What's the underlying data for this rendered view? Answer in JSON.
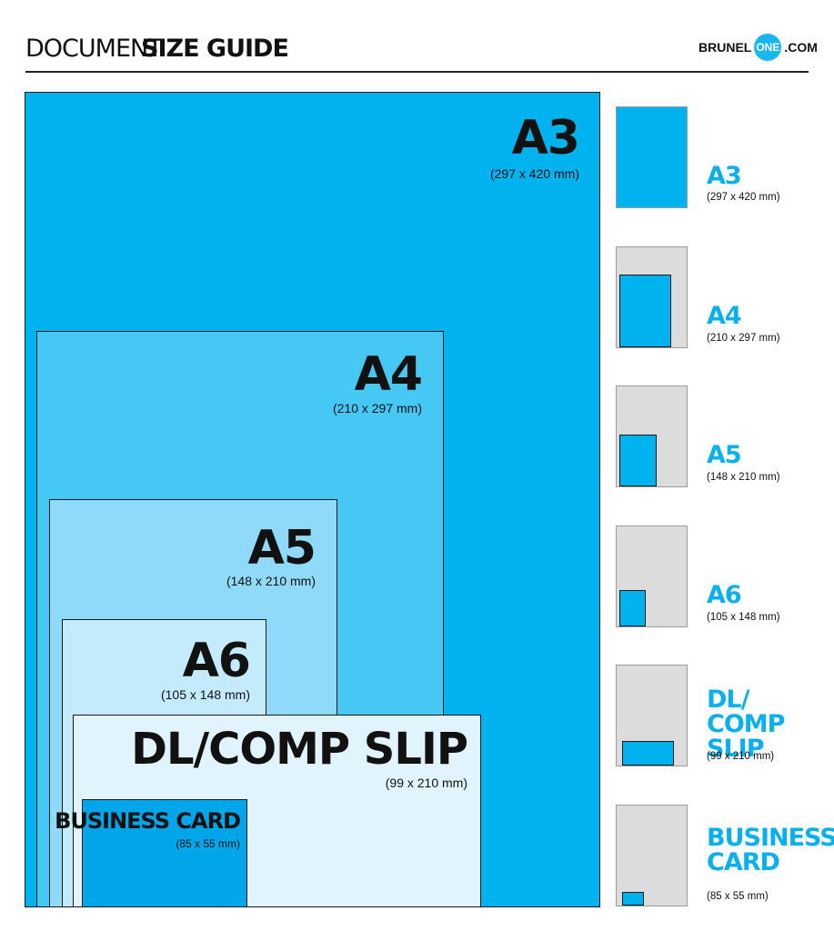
{
  "header": {
    "title_light": "DOCUMENT",
    "title_bold": "SIZE GUIDE",
    "logo_pre": "BRUNEL",
    "logo_circle": "ONE",
    "logo_post": ".COM"
  },
  "colors": {
    "a3": "#00b2ee",
    "a4": "#46c8f5",
    "a5": "#8fdaf8",
    "a6": "#c3ebfb",
    "dl": "#e1f3fc",
    "business_card": "#00a6e9",
    "thumb_bg": "#dcdcdd",
    "thumb_fill": "#00b2ee",
    "side_label": "#0ab0ee",
    "logo_circle": "#1ab6ee"
  },
  "sizes": [
    {
      "name": "A3",
      "dims": "(297 x 420 mm)",
      "side_lines": [
        "A3"
      ]
    },
    {
      "name": "A4",
      "dims": "(210 x 297 mm)",
      "side_lines": [
        "A4"
      ]
    },
    {
      "name": "A5",
      "dims": "(148 x 210 mm)",
      "side_lines": [
        "A5"
      ]
    },
    {
      "name": "A6",
      "dims": "(105 x 148 mm)",
      "side_lines": [
        "A6"
      ]
    },
    {
      "name": "DL/COMP SLIP",
      "dims": "(99 x 210 mm)",
      "side_lines": [
        "DL/",
        "COMP SLIP"
      ]
    },
    {
      "name": "BUSINESS CARD",
      "dims": "(85 x 55 mm)",
      "side_lines": [
        "BUSINESS",
        "CARD"
      ]
    }
  ]
}
